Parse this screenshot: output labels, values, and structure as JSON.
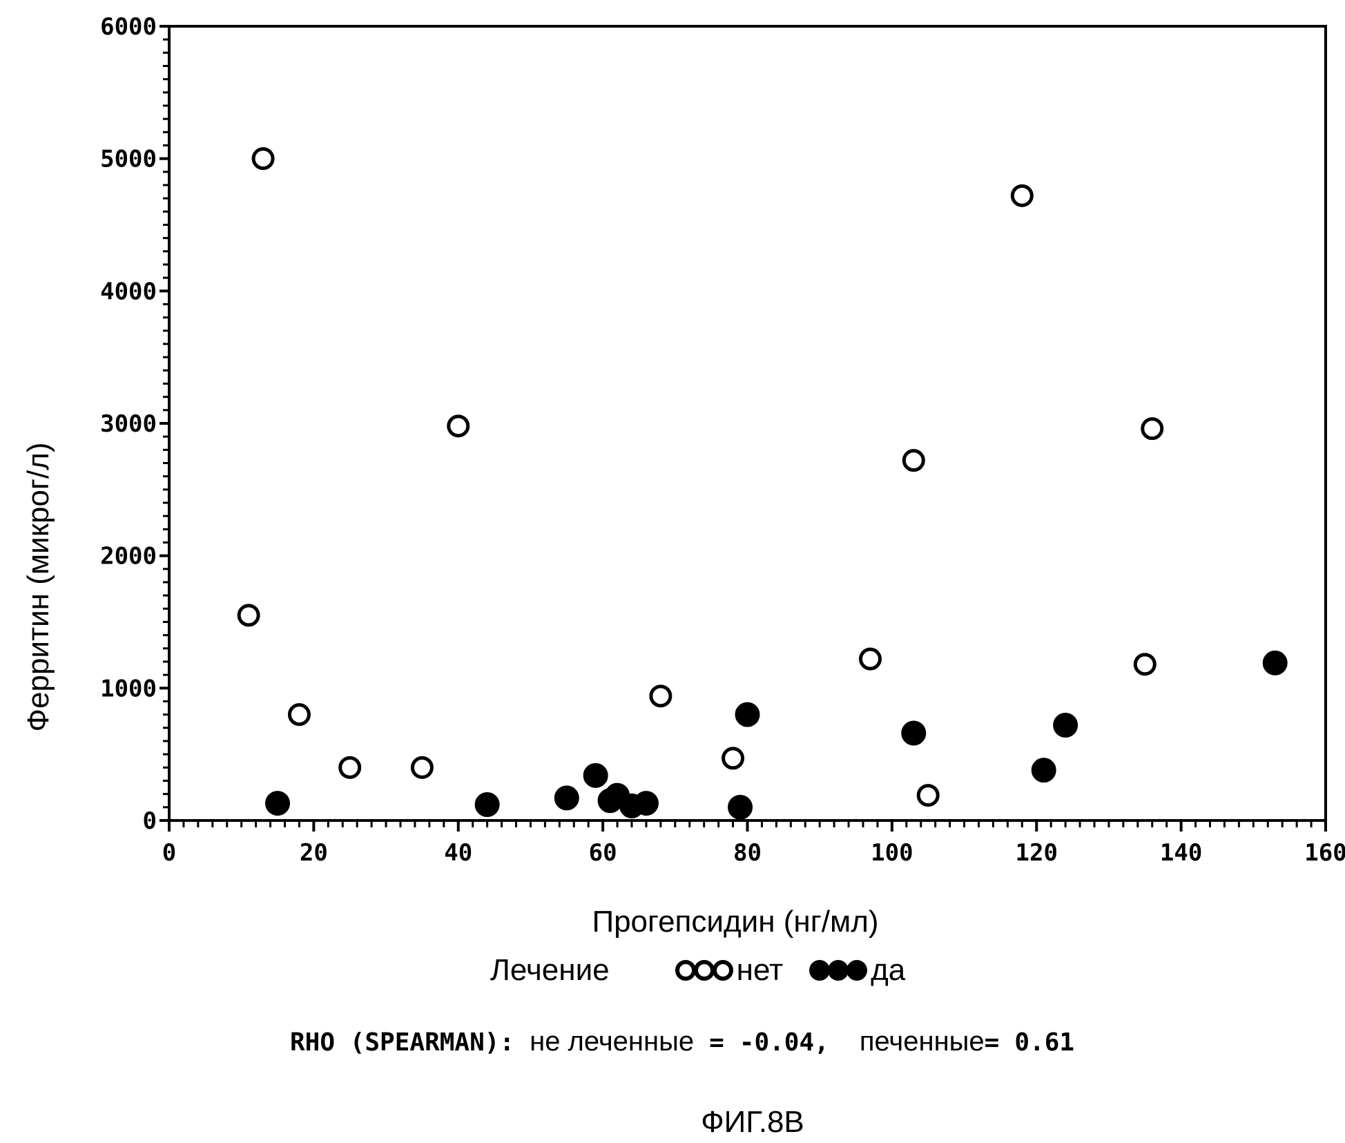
{
  "chart_data": {
    "type": "scatter",
    "xlabel": "Прогепсидин (нг/мл)",
    "ylabel": "Ферритин (микрог/л)",
    "xlim": [
      0,
      160
    ],
    "ylim": [
      0,
      6000
    ],
    "x_ticks": [
      "0",
      "20",
      "40",
      "60",
      "80",
      "100",
      "120",
      "140",
      "160"
    ],
    "y_ticks": [
      "0",
      "1000",
      "2000",
      "3000",
      "4000",
      "5000",
      "6000"
    ],
    "grid": false,
    "legend": {
      "title": "Лечение",
      "position": "bottom",
      "entries": [
        "нет",
        "да"
      ]
    },
    "series": [
      {
        "name": "нет",
        "marker": "open-circle",
        "points": [
          [
            13,
            5000
          ],
          [
            11,
            1550
          ],
          [
            18,
            800
          ],
          [
            25,
            400
          ],
          [
            35,
            400
          ],
          [
            40,
            2980
          ],
          [
            68,
            940
          ],
          [
            78,
            470
          ],
          [
            97,
            1220
          ],
          [
            103,
            2720
          ],
          [
            105,
            190
          ],
          [
            118,
            4720
          ],
          [
            135,
            1180
          ],
          [
            136,
            2960
          ]
        ]
      },
      {
        "name": "да",
        "marker": "filled-circle",
        "points": [
          [
            15,
            130
          ],
          [
            44,
            120
          ],
          [
            55,
            170
          ],
          [
            59,
            340
          ],
          [
            61,
            150
          ],
          [
            62,
            190
          ],
          [
            64,
            110
          ],
          [
            66,
            130
          ],
          [
            79,
            100
          ],
          [
            80,
            800
          ],
          [
            103,
            660
          ],
          [
            121,
            380
          ],
          [
            124,
            720
          ],
          [
            153,
            1190
          ]
        ]
      }
    ],
    "annotation": {
      "prefix": "RHO (SPEARMAN):",
      "untreated_label": "не леченные",
      "untreated_value": "-0.04,",
      "treated_label": "печенные",
      "treated_value": "0.61"
    },
    "caption": "ФИГ.8В"
  }
}
